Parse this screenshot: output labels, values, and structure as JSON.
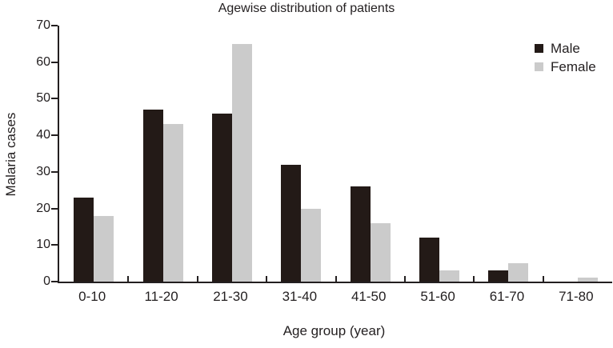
{
  "chart_data": {
    "type": "bar",
    "title": "Agewise distribution of patients",
    "xlabel": "Age group (year)",
    "ylabel": "Malaria cases",
    "categories": [
      "0-10",
      "11-20",
      "21-30",
      "31-40",
      "41-50",
      "51-60",
      "61-70",
      "71-80"
    ],
    "series": [
      {
        "name": "Male",
        "color": "#231a17",
        "values": [
          23,
          47,
          46,
          32,
          26,
          12,
          3,
          0
        ]
      },
      {
        "name": "Female",
        "color": "#cbcbcb",
        "values": [
          18,
          43,
          65,
          20,
          16,
          3,
          5,
          1
        ]
      }
    ],
    "ylim": [
      0,
      70
    ],
    "ytick_step": 10,
    "yticks": [
      0,
      10,
      20,
      30,
      40,
      50,
      60,
      70
    ],
    "grid": false,
    "legend_position": "top-right",
    "axis_color": "#231f20",
    "background_color": "#ffffff"
  }
}
